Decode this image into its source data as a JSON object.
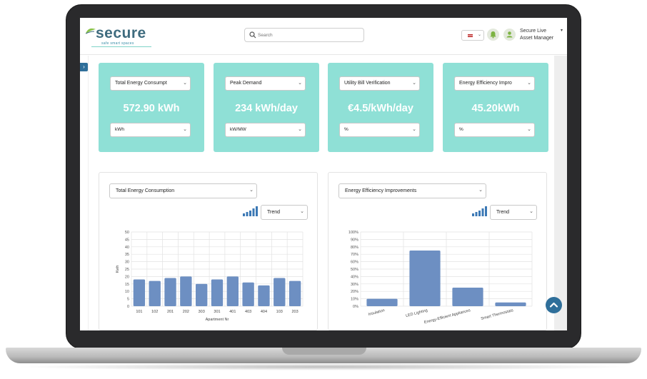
{
  "header": {
    "logo_text": "secure",
    "logo_tagline": "safe smart spaces",
    "search_placeholder": "Search",
    "user_name": "Secure Live",
    "user_role": "Asset Manager"
  },
  "kpis": [
    {
      "metric": "Total Energy Consumpt",
      "value": "572.90 kWh",
      "unit": "kWh"
    },
    {
      "metric": "Peak Demand",
      "value": "234 kWh/day",
      "unit": "kW/MW"
    },
    {
      "metric": "Utility Bill Verification",
      "value": "€4.5/kWh/day",
      "unit": "%"
    },
    {
      "metric": "Energy Efficiency Impro",
      "value": "45.20kWh",
      "unit": "%"
    }
  ],
  "colors": {
    "kpi_bg": "#8fe0d6",
    "bar": "#6d8fc2",
    "accent": "#2f6f9a"
  },
  "charts_ui": {
    "left_select": "Total Energy Consumption",
    "right_select": "Energy Efficiency Improvements",
    "trend_label": "Trend"
  },
  "chart_data": [
    {
      "type": "bar",
      "categories": [
        "101",
        "102",
        "201",
        "202",
        "303",
        "301",
        "401",
        "403",
        "404",
        "103",
        "203"
      ],
      "values": [
        18,
        17,
        19,
        20,
        15,
        18,
        20,
        16,
        14,
        19,
        17
      ],
      "xlabel": "Apartment Nr",
      "ylabel": "Kwh",
      "ylim": [
        0,
        50
      ],
      "yticks": [
        "0",
        "5",
        "10",
        "15",
        "20",
        "25",
        "30",
        "35",
        "40",
        "45",
        "50"
      ],
      "grid": true
    },
    {
      "type": "bar",
      "categories": [
        "Insulation",
        "LED Lighting",
        "Energy-Efficient Appliances",
        "Smart Thermostats"
      ],
      "values": [
        10,
        75,
        25,
        5
      ],
      "xlabel": "",
      "ylabel": "",
      "ylim": [
        0,
        100
      ],
      "yticks": [
        "0%",
        "10%",
        "20%",
        "30%",
        "40%",
        "50%",
        "60%",
        "70%",
        "80%",
        "90%",
        "100%"
      ],
      "grid": true
    }
  ]
}
